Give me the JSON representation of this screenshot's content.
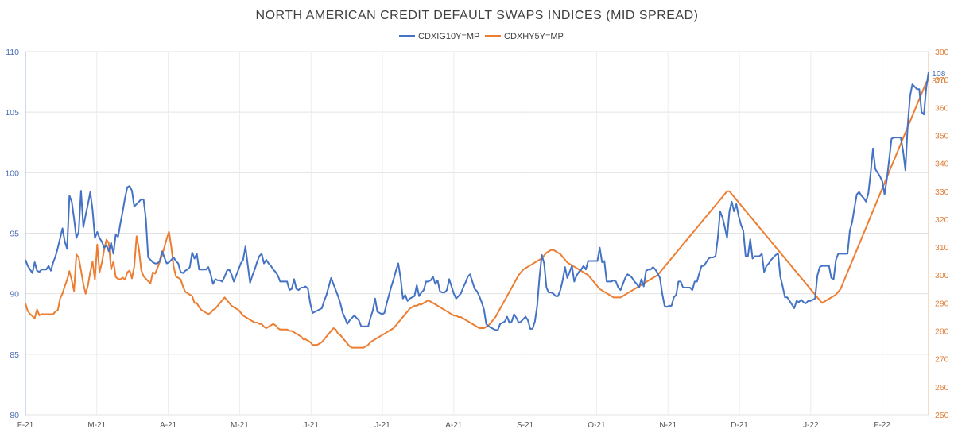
{
  "chart_data": {
    "type": "line",
    "title": "NORTH AMERICAN CREDIT DEFAULT SWAPS INDICES (MID SPREAD)",
    "legend_position": "top-center",
    "grid": {
      "horizontal": true,
      "vertical": true
    },
    "x_ticks": [
      "F-21",
      "M-21",
      "A-21",
      "M-21",
      "J-21",
      "J-21",
      "A-21",
      "S-21",
      "O-21",
      "N-21",
      "D-21",
      "J-22",
      "F-22"
    ],
    "y_left": {
      "min": 80,
      "max": 110,
      "ticks": [
        80,
        85,
        90,
        95,
        100,
        105,
        110
      ]
    },
    "y_right": {
      "min": 250,
      "max": 380,
      "ticks": [
        250,
        260,
        270,
        280,
        290,
        300,
        310,
        320,
        330,
        340,
        350,
        360,
        370,
        380
      ]
    },
    "end_labels": {
      "left": "108",
      "right": "370"
    },
    "series": [
      {
        "name": "CDXIG10Y=MP",
        "axis": "left",
        "color": "#4472c4",
        "values": [
          92.8,
          92.3,
          92.0,
          91.7,
          92.6,
          91.9,
          91.8,
          92.0,
          92.0,
          92.0,
          92.3,
          91.9,
          92.6,
          93.1,
          93.8,
          94.6,
          95.4,
          94.3,
          93.7,
          98.1,
          97.6,
          96.2,
          94.6,
          95.1,
          98.5,
          95.5,
          96.5,
          97.4,
          98.4,
          96.9,
          94.6,
          95.1,
          94.6,
          94.3,
          93.8,
          94.0,
          93.5,
          94.2,
          93.3,
          94.9,
          94.7,
          95.8,
          96.8,
          97.9,
          98.8,
          98.9,
          98.5,
          97.2,
          97.4,
          97.6,
          97.8,
          97.8,
          96.2,
          93.0,
          92.8,
          92.6,
          92.5,
          92.5,
          92.7,
          93.5,
          93.0,
          92.5,
          92.6,
          92.8,
          93.0,
          92.7,
          92.5,
          91.8,
          91.7,
          91.9,
          92.0,
          92.2,
          93.4,
          92.9,
          93.3,
          92.0,
          92.0,
          92.0,
          92.0,
          92.2,
          91.6,
          90.8,
          91.2,
          91.1,
          91.1,
          91.0,
          91.4,
          91.9,
          92.0,
          91.6,
          91.0,
          91.5,
          92.0,
          92.5,
          92.8,
          93.9,
          92.4,
          90.9,
          91.5,
          92.0,
          92.6,
          93.1,
          93.3,
          92.5,
          92.8,
          92.5,
          92.3,
          92.0,
          91.8,
          91.5,
          91.0,
          91.0,
          91.0,
          91.0,
          90.3,
          90.4,
          91.2,
          90.4,
          90.3,
          90.5,
          90.5,
          90.6,
          90.4,
          89.2,
          88.4,
          88.5,
          88.6,
          88.7,
          88.8,
          89.4,
          89.9,
          90.6,
          91.3,
          90.8,
          90.3,
          89.8,
          89.2,
          88.4,
          88.0,
          87.5,
          87.8,
          88.0,
          88.2,
          88.0,
          87.8,
          87.3,
          87.3,
          87.3,
          87.3,
          88.0,
          88.6,
          89.6,
          88.5,
          88.4,
          88.3,
          88.4,
          89.2,
          89.9,
          90.6,
          91.2,
          91.9,
          92.5,
          91.3,
          89.6,
          89.9,
          89.4,
          89.6,
          89.7,
          89.8,
          90.7,
          89.8,
          90.1,
          90.3,
          91.0,
          91.0,
          91.1,
          91.4,
          90.8,
          91.1,
          90.2,
          90.1,
          90.1,
          90.3,
          91.2,
          90.6,
          90.0,
          89.6,
          89.8,
          90.0,
          90.5,
          90.9,
          91.4,
          91.6,
          91.0,
          90.4,
          90.2,
          89.8,
          89.3,
          88.7,
          87.5,
          87.3,
          87.2,
          87.1,
          87.0,
          87.0,
          87.5,
          87.6,
          87.7,
          88.1,
          87.6,
          87.7,
          88.3,
          88.0,
          87.6,
          87.7,
          87.9,
          88.1,
          87.8,
          87.1,
          87.1,
          87.7,
          89.0,
          91.4,
          93.2,
          92.5,
          90.5,
          90.1,
          90.1,
          90.0,
          89.8,
          89.8,
          90.3,
          91.1,
          92.2,
          91.3,
          91.8,
          92.3,
          91.0,
          91.5,
          91.8,
          92.0,
          92.3,
          92.0,
          92.7,
          92.7,
          92.7,
          92.7,
          92.7,
          93.8,
          92.6,
          92.7,
          91.0,
          91.0,
          91.0,
          91.1,
          91.0,
          90.5,
          90.3,
          90.8,
          91.3,
          91.6,
          91.5,
          91.3,
          91.0,
          90.8,
          90.5,
          91.2,
          90.6,
          91.9,
          92.0,
          92.0,
          92.2,
          92.0,
          91.7,
          91.3,
          90.0,
          89.0,
          88.9,
          89.0,
          89.0,
          89.7,
          89.9,
          91.0,
          91.0,
          90.5,
          90.5,
          90.5,
          90.5,
          90.3,
          91.0,
          91.0,
          91.7,
          92.3,
          92.3,
          92.6,
          92.9,
          93.0,
          93.0,
          93.1,
          94.6,
          96.8,
          96.3,
          95.5,
          94.6,
          96.8,
          97.6,
          96.8,
          97.4,
          96.4,
          95.7,
          95.2,
          93.1,
          93.1,
          94.5,
          92.9,
          93.1,
          93.1,
          93.1,
          93.3,
          91.8,
          92.3,
          92.5,
          92.8,
          93.0,
          93.2,
          93.3,
          91.4,
          90.6,
          89.7,
          89.7,
          89.4,
          89.1,
          88.8,
          89.4,
          89.3,
          89.5,
          89.3,
          89.2,
          89.4,
          89.4,
          89.5,
          89.6,
          91.5,
          92.2,
          92.3,
          92.3,
          92.3,
          92.3,
          91.3,
          91.2,
          92.8,
          93.3,
          93.3,
          93.3,
          93.3,
          93.3,
          95.2,
          95.9,
          97.1,
          98.2,
          98.4,
          98.1,
          97.9,
          97.6,
          98.3,
          100.0,
          102.0,
          100.3,
          100.0,
          99.7,
          99.3,
          98.2,
          99.5,
          101.1,
          102.8,
          102.9,
          102.9,
          102.9,
          102.9,
          101.8,
          100.2,
          103.9,
          106.3,
          107.3,
          107.1,
          106.9,
          106.9,
          105.0,
          104.8,
          107.0,
          108.3
        ]
      },
      {
        "name": "CDXHY5Y=MP",
        "axis": "right",
        "color": "#ed7d31",
        "values": [
          289.8,
          287.1,
          286.0,
          285.3,
          284.5,
          287.7,
          285.6,
          286.0,
          286.0,
          286.0,
          286.0,
          286.0,
          286.0,
          287.0,
          287.5,
          291.7,
          293.4,
          296.0,
          298.3,
          301.4,
          298.1,
          294.3,
          307.4,
          306.3,
          301.7,
          296.8,
          293.3,
          296.3,
          301.1,
          304.8,
          298.4,
          310.9,
          301.0,
          304.4,
          309.1,
          312.7,
          311.4,
          302.0,
          304.9,
          299.3,
          298.6,
          298.5,
          299.1,
          298.3,
          301.0,
          301.6,
          298.8,
          303.1,
          313.9,
          309.3,
          301.8,
          299.6,
          298.7,
          297.8,
          297.1,
          301.0,
          300.5,
          302.5,
          304.7,
          307.0,
          310.0,
          313.0,
          315.5,
          310.0,
          303.0,
          299.5,
          299.0,
          298.5,
          296.0,
          294.0,
          293.5,
          293.0,
          292.5,
          290.0,
          290.0,
          288.5,
          287.5,
          287.0,
          286.5,
          286.0,
          286.5,
          287.5,
          288.0,
          289.0,
          290.0,
          291.0,
          292.0,
          291.0,
          290.0,
          289.0,
          288.5,
          288.0,
          287.5,
          286.5,
          285.5,
          285.0,
          284.5,
          284.0,
          283.5,
          283.0,
          283.0,
          282.5,
          282.5,
          281.5,
          281.0,
          281.5,
          282.0,
          282.5,
          282.0,
          281.0,
          280.5,
          280.5,
          280.5,
          280.5,
          280.0,
          280.0,
          279.5,
          279.0,
          278.5,
          278.0,
          277.0,
          277.0,
          276.5,
          276.0,
          275.0,
          275.0,
          275.0,
          275.5,
          276.0,
          277.0,
          278.0,
          279.0,
          280.0,
          281.0,
          280.5,
          279.0,
          278.5,
          277.5,
          276.5,
          275.5,
          274.5,
          274.0,
          274.0,
          274.0,
          274.0,
          274.0,
          274.0,
          274.5,
          275.0,
          276.0,
          276.5,
          277.0,
          277.5,
          278.0,
          278.5,
          279.0,
          279.5,
          280.0,
          280.5,
          281.0,
          282.0,
          283.0,
          284.0,
          285.0,
          286.0,
          287.0,
          288.0,
          288.5,
          289.0,
          289.0,
          289.5,
          289.5,
          290.0,
          290.5,
          291.0,
          290.5,
          290.0,
          289.5,
          289.0,
          288.5,
          288.0,
          287.5,
          287.0,
          286.5,
          286.0,
          285.5,
          285.5,
          285.0,
          285.0,
          284.5,
          284.0,
          283.5,
          283.0,
          282.5,
          282.0,
          281.5,
          281.0,
          281.0,
          281.0,
          281.5,
          282.0,
          283.0,
          284.0,
          285.0,
          286.5,
          288.0,
          289.5,
          291.0,
          292.5,
          294.0,
          295.5,
          297.0,
          298.5,
          300.0,
          301.0,
          302.0,
          302.5,
          303.0,
          303.5,
          304.0,
          304.5,
          305.0,
          305.5,
          306.0,
          307.0,
          308.0,
          308.5,
          309.0,
          309.0,
          308.5,
          308.0,
          307.5,
          306.5,
          305.5,
          304.5,
          304.0,
          303.5,
          303.0,
          302.5,
          302.0,
          301.5,
          301.0,
          300.5,
          300.0,
          299.0,
          298.0,
          297.0,
          296.0,
          295.0,
          294.5,
          294.0,
          293.5,
          293.0,
          292.5,
          292.0,
          292.0,
          292.0,
          292.0,
          292.5,
          293.0,
          293.5,
          294.0,
          294.5,
          295.0,
          295.5,
          296.0,
          296.5,
          297.0,
          297.5,
          298.0,
          298.5,
          299.0,
          299.5,
          300.0,
          301.0,
          302.0,
          303.0,
          304.0,
          305.0,
          306.0,
          307.0,
          308.0,
          309.0,
          310.0,
          311.0,
          312.0,
          313.0,
          314.0,
          315.0,
          316.0,
          317.0,
          318.0,
          319.0,
          320.0,
          321.0,
          322.0,
          323.0,
          324.0,
          325.0,
          326.0,
          327.0,
          328.0,
          329.0,
          330.0,
          330.0,
          329.0,
          328.0,
          327.0,
          326.0,
          325.0,
          324.0,
          323.0,
          322.0,
          321.0,
          320.0,
          319.0,
          318.0,
          317.0,
          316.0,
          315.0,
          314.0,
          313.0,
          312.0,
          311.0,
          310.0,
          309.0,
          308.0,
          307.0,
          306.0,
          305.0,
          304.0,
          303.0,
          302.0,
          301.0,
          300.0,
          299.0,
          298.0,
          297.0,
          296.0,
          295.0,
          294.0,
          293.0,
          292.0,
          291.0,
          290.0,
          290.5,
          291.0,
          291.5,
          292.0,
          292.5,
          293.0,
          294.0,
          295.0,
          297.0,
          299.0,
          301.0,
          303.0,
          305.0,
          307.0,
          309.0,
          311.0,
          313.0,
          315.0,
          317.0,
          319.0,
          321.0,
          323.0,
          325.0,
          327.0,
          329.0,
          331.0,
          333.0,
          335.0,
          337.0,
          339.0,
          341.0,
          343.0,
          345.0,
          347.0,
          349.0,
          351.0,
          353.0,
          355.0,
          357.0,
          359.0,
          361.0,
          363.0,
          365.0,
          367.0,
          369.0,
          370.0
        ]
      }
    ]
  }
}
